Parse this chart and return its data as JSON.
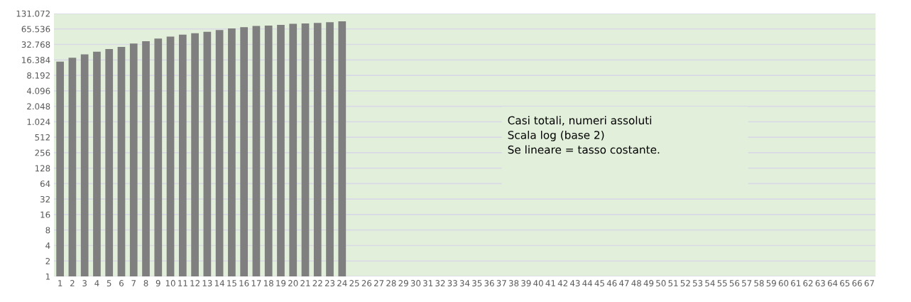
{
  "chart_data": {
    "type": "bar",
    "categories": [
      "1",
      "2",
      "3",
      "4",
      "5",
      "6",
      "7",
      "8",
      "9",
      "10",
      "11",
      "12",
      "13",
      "14",
      "15",
      "16",
      "17",
      "18",
      "19",
      "20",
      "21",
      "22",
      "23",
      "24",
      "25",
      "26",
      "27",
      "28",
      "29",
      "30",
      "31",
      "32",
      "33",
      "34",
      "35",
      "36",
      "37",
      "38",
      "39",
      "40",
      "41",
      "42",
      "43",
      "44",
      "45",
      "46",
      "47",
      "48",
      "49",
      "50",
      "51",
      "52",
      "53",
      "54",
      "55",
      "56",
      "57",
      "58",
      "59",
      "60",
      "61",
      "62",
      "63",
      "64",
      "65",
      "66",
      "67"
    ],
    "values": [
      15200,
      18100,
      21000,
      23600,
      26600,
      29300,
      34000,
      37900,
      42700,
      46600,
      50700,
      54000,
      57700,
      62500,
      67000,
      70800,
      74800,
      76300,
      78800,
      82400,
      84000,
      86000,
      89000,
      92500,
      null,
      null,
      null,
      null,
      null,
      null,
      null,
      null,
      null,
      null,
      null,
      null,
      null,
      null,
      null,
      null,
      null,
      null,
      null,
      null,
      null,
      null,
      null,
      null,
      null,
      null,
      null,
      null,
      null,
      null,
      null,
      null,
      null,
      null,
      null,
      null,
      null,
      null,
      null,
      null,
      null,
      null,
      null
    ],
    "color": "#7f7f7f",
    "log": true,
    "ylim": [
      1,
      131072
    ],
    "yticks": [
      1,
      2,
      4,
      8,
      16,
      32,
      64,
      128,
      256,
      512,
      {
        "value": 1024,
        "label": "1.024"
      },
      {
        "value": 2048,
        "label": "2.048"
      },
      {
        "value": 4096,
        "label": "4.096"
      },
      {
        "value": 8192,
        "label": "8.192"
      },
      {
        "value": 16384,
        "label": "16.384"
      },
      {
        "value": 32768,
        "label": "32.768"
      },
      {
        "value": 65536,
        "label": "65.536"
      },
      {
        "value": 131072,
        "label": "131.072"
      }
    ],
    "grid": "y",
    "annotations": [
      "Casi totali, numeri assoluti\nScala log (base 2)\nSe lineare = tasso costante."
    ]
  }
}
